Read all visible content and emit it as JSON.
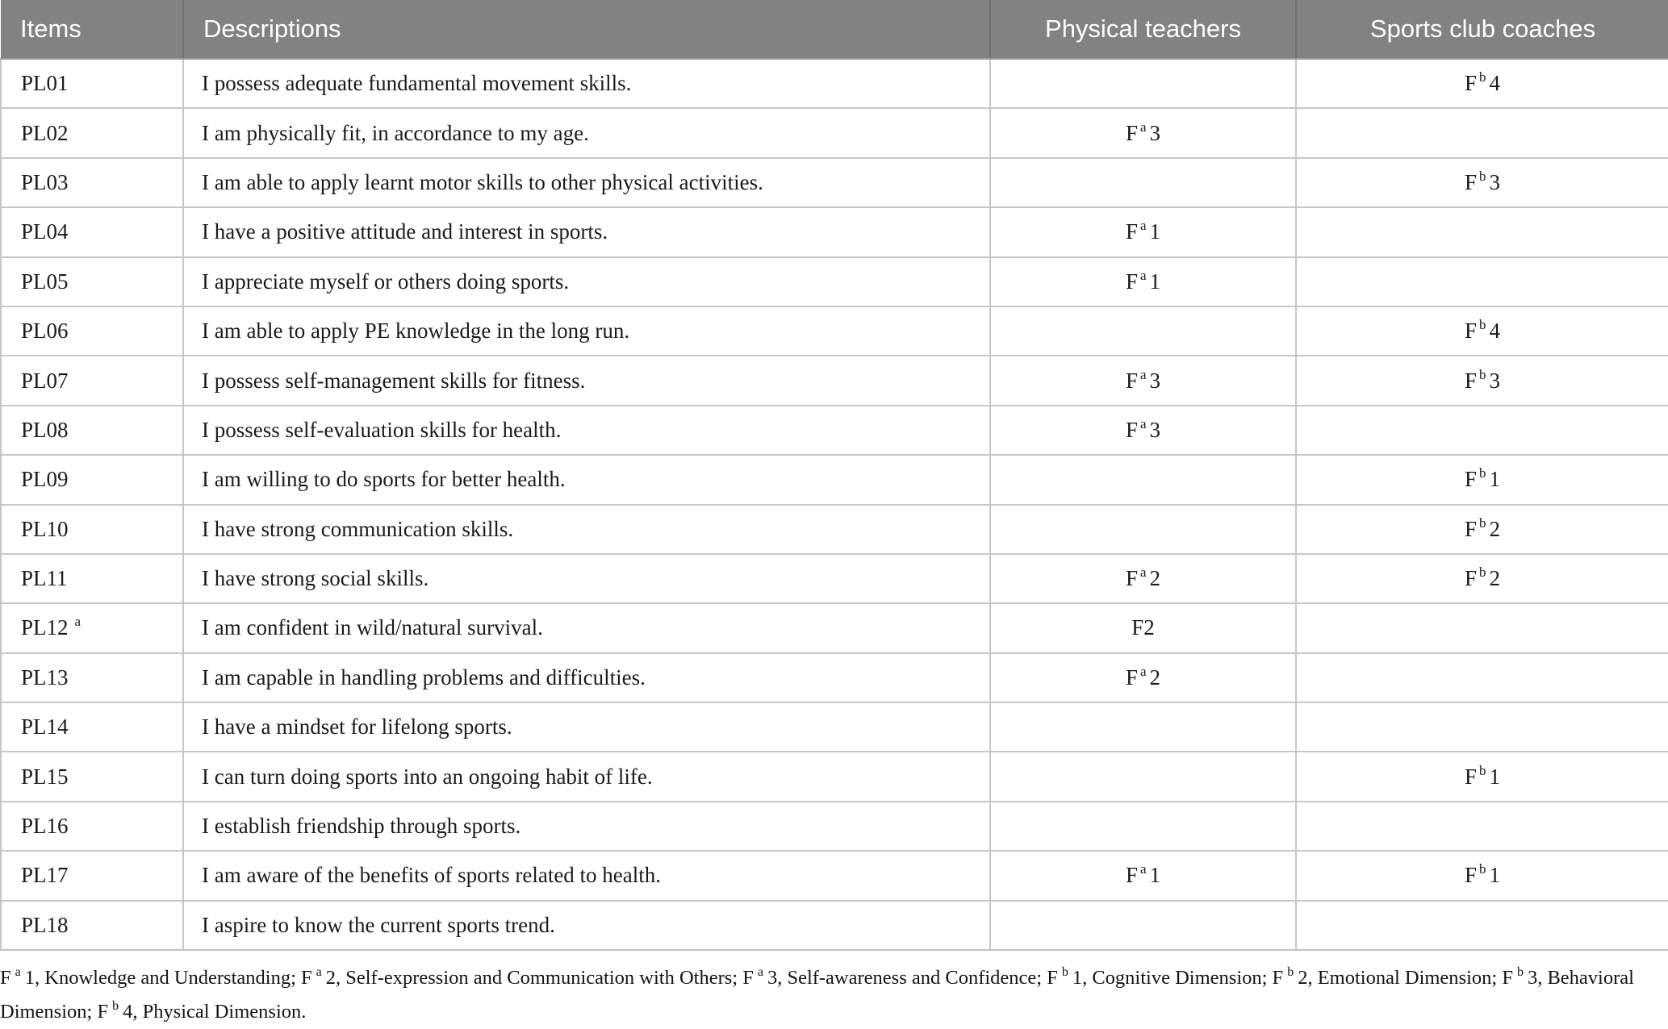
{
  "table": {
    "columns": [
      "Items",
      "Descriptions",
      "Physical teachers",
      "Sports club coaches"
    ],
    "rows": [
      {
        "item": "PL01",
        "item_sup": "",
        "description": "I possess adequate fundamental movement skills.",
        "physical_teachers": null,
        "sports_club_coaches": {
          "base": "F",
          "sup": "b",
          "num": "4"
        }
      },
      {
        "item": "PL02",
        "item_sup": "",
        "description": "I am physically fit, in accordance to my age.",
        "physical_teachers": {
          "base": "F",
          "sup": "a",
          "num": "3"
        },
        "sports_club_coaches": null
      },
      {
        "item": "PL03",
        "item_sup": "",
        "description": "I am able to apply learnt motor skills to other physical activities.",
        "physical_teachers": null,
        "sports_club_coaches": {
          "base": "F",
          "sup": "b",
          "num": "3"
        }
      },
      {
        "item": "PL04",
        "item_sup": "",
        "description": "I have a positive attitude and interest in sports.",
        "physical_teachers": {
          "base": "F",
          "sup": "a",
          "num": "1"
        },
        "sports_club_coaches": null
      },
      {
        "item": "PL05",
        "item_sup": "",
        "description": "I appreciate myself or others doing sports.",
        "physical_teachers": {
          "base": "F",
          "sup": "a",
          "num": "1"
        },
        "sports_club_coaches": null
      },
      {
        "item": "PL06",
        "item_sup": "",
        "description": "I am able to apply PE knowledge in the long run.",
        "physical_teachers": null,
        "sports_club_coaches": {
          "base": "F",
          "sup": "b",
          "num": "4"
        }
      },
      {
        "item": "PL07",
        "item_sup": "",
        "description": "I possess self-management skills for fitness.",
        "physical_teachers": {
          "base": "F",
          "sup": "a",
          "num": "3"
        },
        "sports_club_coaches": {
          "base": "F",
          "sup": "b",
          "num": "3"
        }
      },
      {
        "item": "PL08",
        "item_sup": "",
        "description": "I possess self-evaluation skills for health.",
        "physical_teachers": {
          "base": "F",
          "sup": "a",
          "num": "3"
        },
        "sports_club_coaches": null
      },
      {
        "item": "PL09",
        "item_sup": "",
        "description": "I am willing to do sports for better health.",
        "physical_teachers": null,
        "sports_club_coaches": {
          "base": "F",
          "sup": "b",
          "num": "1"
        }
      },
      {
        "item": "PL10",
        "item_sup": "",
        "description": "I have strong communication skills.",
        "physical_teachers": null,
        "sports_club_coaches": {
          "base": "F",
          "sup": "b",
          "num": "2"
        }
      },
      {
        "item": "PL11",
        "item_sup": "",
        "description": "I have strong social skills.",
        "physical_teachers": {
          "base": "F",
          "sup": "a",
          "num": "2"
        },
        "sports_club_coaches": {
          "base": "F",
          "sup": "b",
          "num": "2"
        }
      },
      {
        "item": "PL12",
        "item_sup": "a",
        "description": "I am confident in wild/natural survival.",
        "physical_teachers": {
          "base": "F",
          "sup": "",
          "num": "2"
        },
        "sports_club_coaches": null
      },
      {
        "item": "PL13",
        "item_sup": "",
        "description": "I am capable in handling problems and difficulties.",
        "physical_teachers": {
          "base": "F",
          "sup": "a",
          "num": "2"
        },
        "sports_club_coaches": null
      },
      {
        "item": "PL14",
        "item_sup": "",
        "description": "I have a mindset for lifelong sports.",
        "physical_teachers": null,
        "sports_club_coaches": null
      },
      {
        "item": "PL15",
        "item_sup": "",
        "description": "I can turn doing sports into an ongoing habit of life.",
        "physical_teachers": null,
        "sports_club_coaches": {
          "base": "F",
          "sup": "b",
          "num": "1"
        }
      },
      {
        "item": "PL16",
        "item_sup": "",
        "description": "I establish friendship through sports.",
        "physical_teachers": null,
        "sports_club_coaches": null
      },
      {
        "item": "PL17",
        "item_sup": "",
        "description": "I am aware of the benefits of sports related to health.",
        "physical_teachers": {
          "base": "F",
          "sup": "a",
          "num": "1"
        },
        "sports_club_coaches": {
          "base": "F",
          "sup": "b",
          "num": "1"
        }
      },
      {
        "item": "PL18",
        "item_sup": "",
        "description": "I aspire to know the current sports trend.",
        "physical_teachers": null,
        "sports_club_coaches": null
      }
    ]
  },
  "footnote": {
    "segments": [
      {
        "text": "F"
      },
      {
        "sup": "a"
      },
      {
        "text": "1, Knowledge and Understanding; F"
      },
      {
        "sup": "a"
      },
      {
        "text": "2, Self-expression and Communication with Others; F"
      },
      {
        "sup": "a"
      },
      {
        "text": "3, Self-awareness and Confidence; F"
      },
      {
        "sup": "b"
      },
      {
        "text": "1, Cognitive Dimension; F"
      },
      {
        "sup": "b"
      },
      {
        "text": "2, Emotional Dimension; F"
      },
      {
        "sup": "b"
      },
      {
        "text": "3, Behavioral Dimension; F"
      },
      {
        "sup": "b"
      },
      {
        "text": "4, Physical Dimension."
      }
    ]
  }
}
